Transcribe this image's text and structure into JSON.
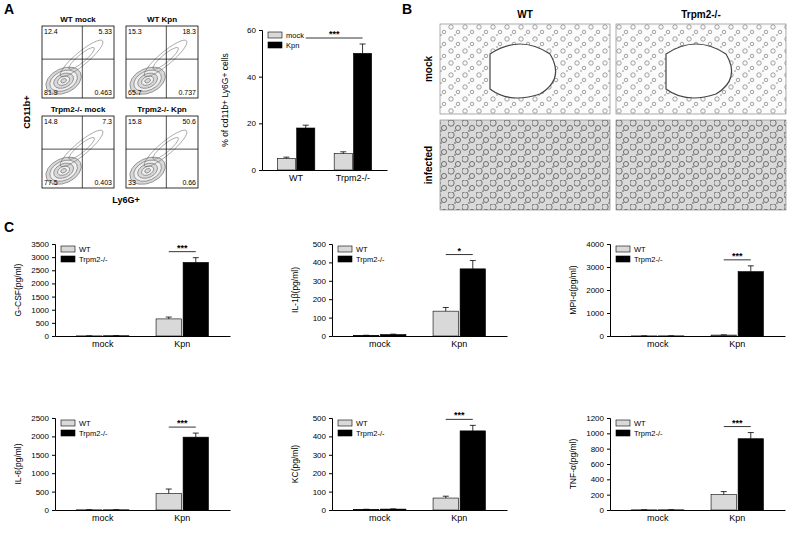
{
  "panel_labels": [
    "A",
    "B",
    "C"
  ],
  "micrographs": {
    "columns": [
      "WT",
      "Trpm2-/-"
    ],
    "rows": [
      "mock",
      "infected"
    ]
  },
  "chart_data": [
    {
      "type": "quadrant",
      "x_label": "Ly6G+",
      "y_label": "CD11b+",
      "tick_labels": false,
      "data_labels": true,
      "plots": [
        {
          "title": "WT mock",
          "values": [
            12.4,
            5.33,
            81.9,
            0.463
          ]
        },
        {
          "title": "WT Kpn",
          "values": [
            15.3,
            18.3,
            65.7,
            0.737
          ]
        },
        {
          "title": "Trpm2-/- mock",
          "values": [
            14.8,
            7.3,
            77.5,
            0.403
          ]
        },
        {
          "title": "Trpm2-/- Kpn",
          "values": [
            15.8,
            50.6,
            33,
            0.66
          ]
        }
      ]
    },
    {
      "type": "bar",
      "y_label": "% of cd11b+ Ly6G+ cells",
      "categories": [
        "WT",
        "Trpm2-/-"
      ],
      "series": [
        {
          "name": "mock",
          "color": "#d9d9d9",
          "values": [
            5,
            7
          ],
          "errors": [
            0.5,
            0.8
          ]
        },
        {
          "name": "Kpn",
          "color": "#000000",
          "values": [
            18,
            50
          ],
          "errors": [
            1.2,
            4
          ]
        }
      ],
      "ylim": [
        0,
        60
      ],
      "yticks": [
        0,
        20,
        40,
        60
      ],
      "legend": "upper left",
      "annotations": [
        "***"
      ]
    },
    {
      "type": "bar",
      "y_label": "G-CSF(pg/ml)",
      "categories": [
        "mock",
        "Kpn"
      ],
      "series": [
        {
          "name": "WT",
          "color": "#d9d9d9",
          "values": [
            5,
            650
          ],
          "errors": [
            2,
            70
          ]
        },
        {
          "name": "Trpm2-/-",
          "color": "#000000",
          "values": [
            10,
            2800
          ],
          "errors": [
            3,
            180
          ]
        }
      ],
      "ylim": [
        0,
        3500
      ],
      "yticks": [
        0,
        500,
        1000,
        1500,
        2000,
        2500,
        3000,
        3500
      ],
      "legend": "upper left",
      "annotations": [
        "***"
      ]
    },
    {
      "type": "bar",
      "y_label": "IL-1β(pg/ml)",
      "categories": [
        "mock",
        "Kpn"
      ],
      "series": [
        {
          "name": "WT",
          "color": "#d9d9d9",
          "values": [
            3,
            135
          ],
          "errors": [
            1,
            20
          ]
        },
        {
          "name": "Trpm2-/-",
          "color": "#000000",
          "values": [
            8,
            365
          ],
          "errors": [
            2,
            45
          ]
        }
      ],
      "ylim": [
        0,
        500
      ],
      "yticks": [
        0,
        100,
        200,
        300,
        400,
        500
      ],
      "legend": "upper left",
      "annotations": [
        "*"
      ]
    },
    {
      "type": "bar",
      "y_label": "MPI-α(pg/ml)",
      "categories": [
        "mock",
        "Kpn"
      ],
      "series": [
        {
          "name": "WT",
          "color": "#d9d9d9",
          "values": [
            5,
            40
          ],
          "errors": [
            2,
            10
          ]
        },
        {
          "name": "Trpm2-/-",
          "color": "#000000",
          "values": [
            5,
            2800
          ],
          "errors": [
            2,
            250
          ]
        }
      ],
      "ylim": [
        0,
        4000
      ],
      "yticks": [
        0,
        1000,
        2000,
        3000,
        4000
      ],
      "legend": "upper left",
      "annotations": [
        "***"
      ]
    },
    {
      "type": "bar",
      "y_label": "IL-6(pg/ml)",
      "categories": [
        "mock",
        "Kpn"
      ],
      "series": [
        {
          "name": "WT",
          "color": "#d9d9d9",
          "values": [
            5,
            450
          ],
          "errors": [
            2,
            120
          ]
        },
        {
          "name": "Trpm2-/-",
          "color": "#000000",
          "values": [
            5,
            1980
          ],
          "errors": [
            2,
            110
          ]
        }
      ],
      "ylim": [
        0,
        2500
      ],
      "yticks": [
        0,
        500,
        1000,
        1500,
        2000,
        2500
      ],
      "legend": "upper left",
      "annotations": [
        "***"
      ]
    },
    {
      "type": "bar",
      "y_label": "KC(pg/ml)",
      "categories": [
        "mock",
        "Kpn"
      ],
      "series": [
        {
          "name": "WT",
          "color": "#d9d9d9",
          "values": [
            3,
            65
          ],
          "errors": [
            1,
            10
          ]
        },
        {
          "name": "Trpm2-/-",
          "color": "#000000",
          "values": [
            5,
            430
          ],
          "errors": [
            1,
            30
          ]
        }
      ],
      "ylim": [
        0,
        500
      ],
      "yticks": [
        0,
        100,
        200,
        300,
        400,
        500
      ],
      "legend": "upper left",
      "annotations": [
        "***"
      ]
    },
    {
      "type": "bar",
      "y_label": "TNF-α(pg/ml)",
      "categories": [
        "mock",
        "Kpn"
      ],
      "series": [
        {
          "name": "WT",
          "color": "#d9d9d9",
          "values": [
            2,
            200
          ],
          "errors": [
            1,
            40
          ]
        },
        {
          "name": "Trpm2-/-",
          "color": "#000000",
          "values": [
            2,
            930
          ],
          "errors": [
            1,
            80
          ]
        }
      ],
      "ylim": [
        0,
        1200
      ],
      "yticks": [
        0,
        200,
        400,
        600,
        800,
        1000,
        1200
      ],
      "legend": "upper left",
      "annotations": [
        "***"
      ]
    }
  ]
}
